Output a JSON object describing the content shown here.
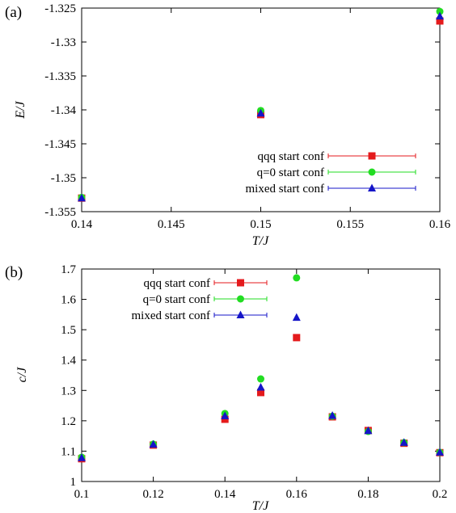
{
  "chart_data": [
    {
      "type": "scatter",
      "panel_label": "(a)",
      "xlabel": "T/J",
      "ylabel": "E/J",
      "xlim": [
        0.14,
        0.16
      ],
      "ylim": [
        -1.355,
        -1.325
      ],
      "xticks": [
        "0.14",
        "0.145",
        "0.15",
        "0.155",
        "0.16"
      ],
      "yticks": [
        "-1.355",
        "-1.35",
        "-1.345",
        "-1.34",
        "-1.335",
        "-1.33",
        "-1.325"
      ],
      "legend_position": "bottom-right",
      "series": [
        {
          "name": "qqq start conf",
          "marker": "square",
          "color": "#e41a1c",
          "x": [
            0.14,
            0.15,
            0.16
          ],
          "y": [
            -1.353,
            -1.3407,
            -1.3269
          ]
        },
        {
          "name": "q=0 start conf",
          "marker": "circle",
          "color": "#22dd22",
          "x": [
            0.14,
            0.15,
            0.16
          ],
          "y": [
            -1.3529,
            -1.3401,
            -1.3255
          ]
        },
        {
          "name": "mixed start conf",
          "marker": "triangle",
          "color": "#1515c8",
          "x": [
            0.14,
            0.15,
            0.16
          ],
          "y": [
            -1.353,
            -1.3405,
            -1.3262
          ]
        }
      ]
    },
    {
      "type": "scatter",
      "panel_label": "(b)",
      "xlabel": "T/J",
      "ylabel": "c/J",
      "xlim": [
        0.1,
        0.2
      ],
      "ylim": [
        1.0,
        1.7
      ],
      "xticks": [
        "0.1",
        "0.12",
        "0.14",
        "0.16",
        "0.18",
        "0.2"
      ],
      "yticks": [
        "1",
        "1.1",
        "1.2",
        "1.3",
        "1.4",
        "1.5",
        "1.6",
        "1.7"
      ],
      "legend_position": "top-left",
      "series": [
        {
          "name": "qqq start conf",
          "marker": "square",
          "color": "#e41a1c",
          "x": [
            0.1,
            0.12,
            0.14,
            0.15,
            0.16,
            0.17,
            0.18,
            0.19,
            0.2
          ],
          "y": [
            1.075,
            1.12,
            1.205,
            1.293,
            1.474,
            1.213,
            1.168,
            1.126,
            1.095
          ]
        },
        {
          "name": "q=0 start conf",
          "marker": "circle",
          "color": "#22dd22",
          "x": [
            0.1,
            0.12,
            0.14,
            0.15,
            0.16,
            0.17,
            0.18,
            0.19,
            0.2
          ],
          "y": [
            1.08,
            1.123,
            1.224,
            1.338,
            1.671,
            1.215,
            1.165,
            1.128,
            1.096
          ]
        },
        {
          "name": "mixed start conf",
          "marker": "triangle",
          "color": "#1515c8",
          "x": [
            0.1,
            0.12,
            0.14,
            0.15,
            0.16,
            0.17,
            0.18,
            0.19,
            0.2
          ],
          "y": [
            1.078,
            1.122,
            1.216,
            1.31,
            1.54,
            1.217,
            1.167,
            1.128,
            1.096
          ]
        }
      ]
    }
  ]
}
